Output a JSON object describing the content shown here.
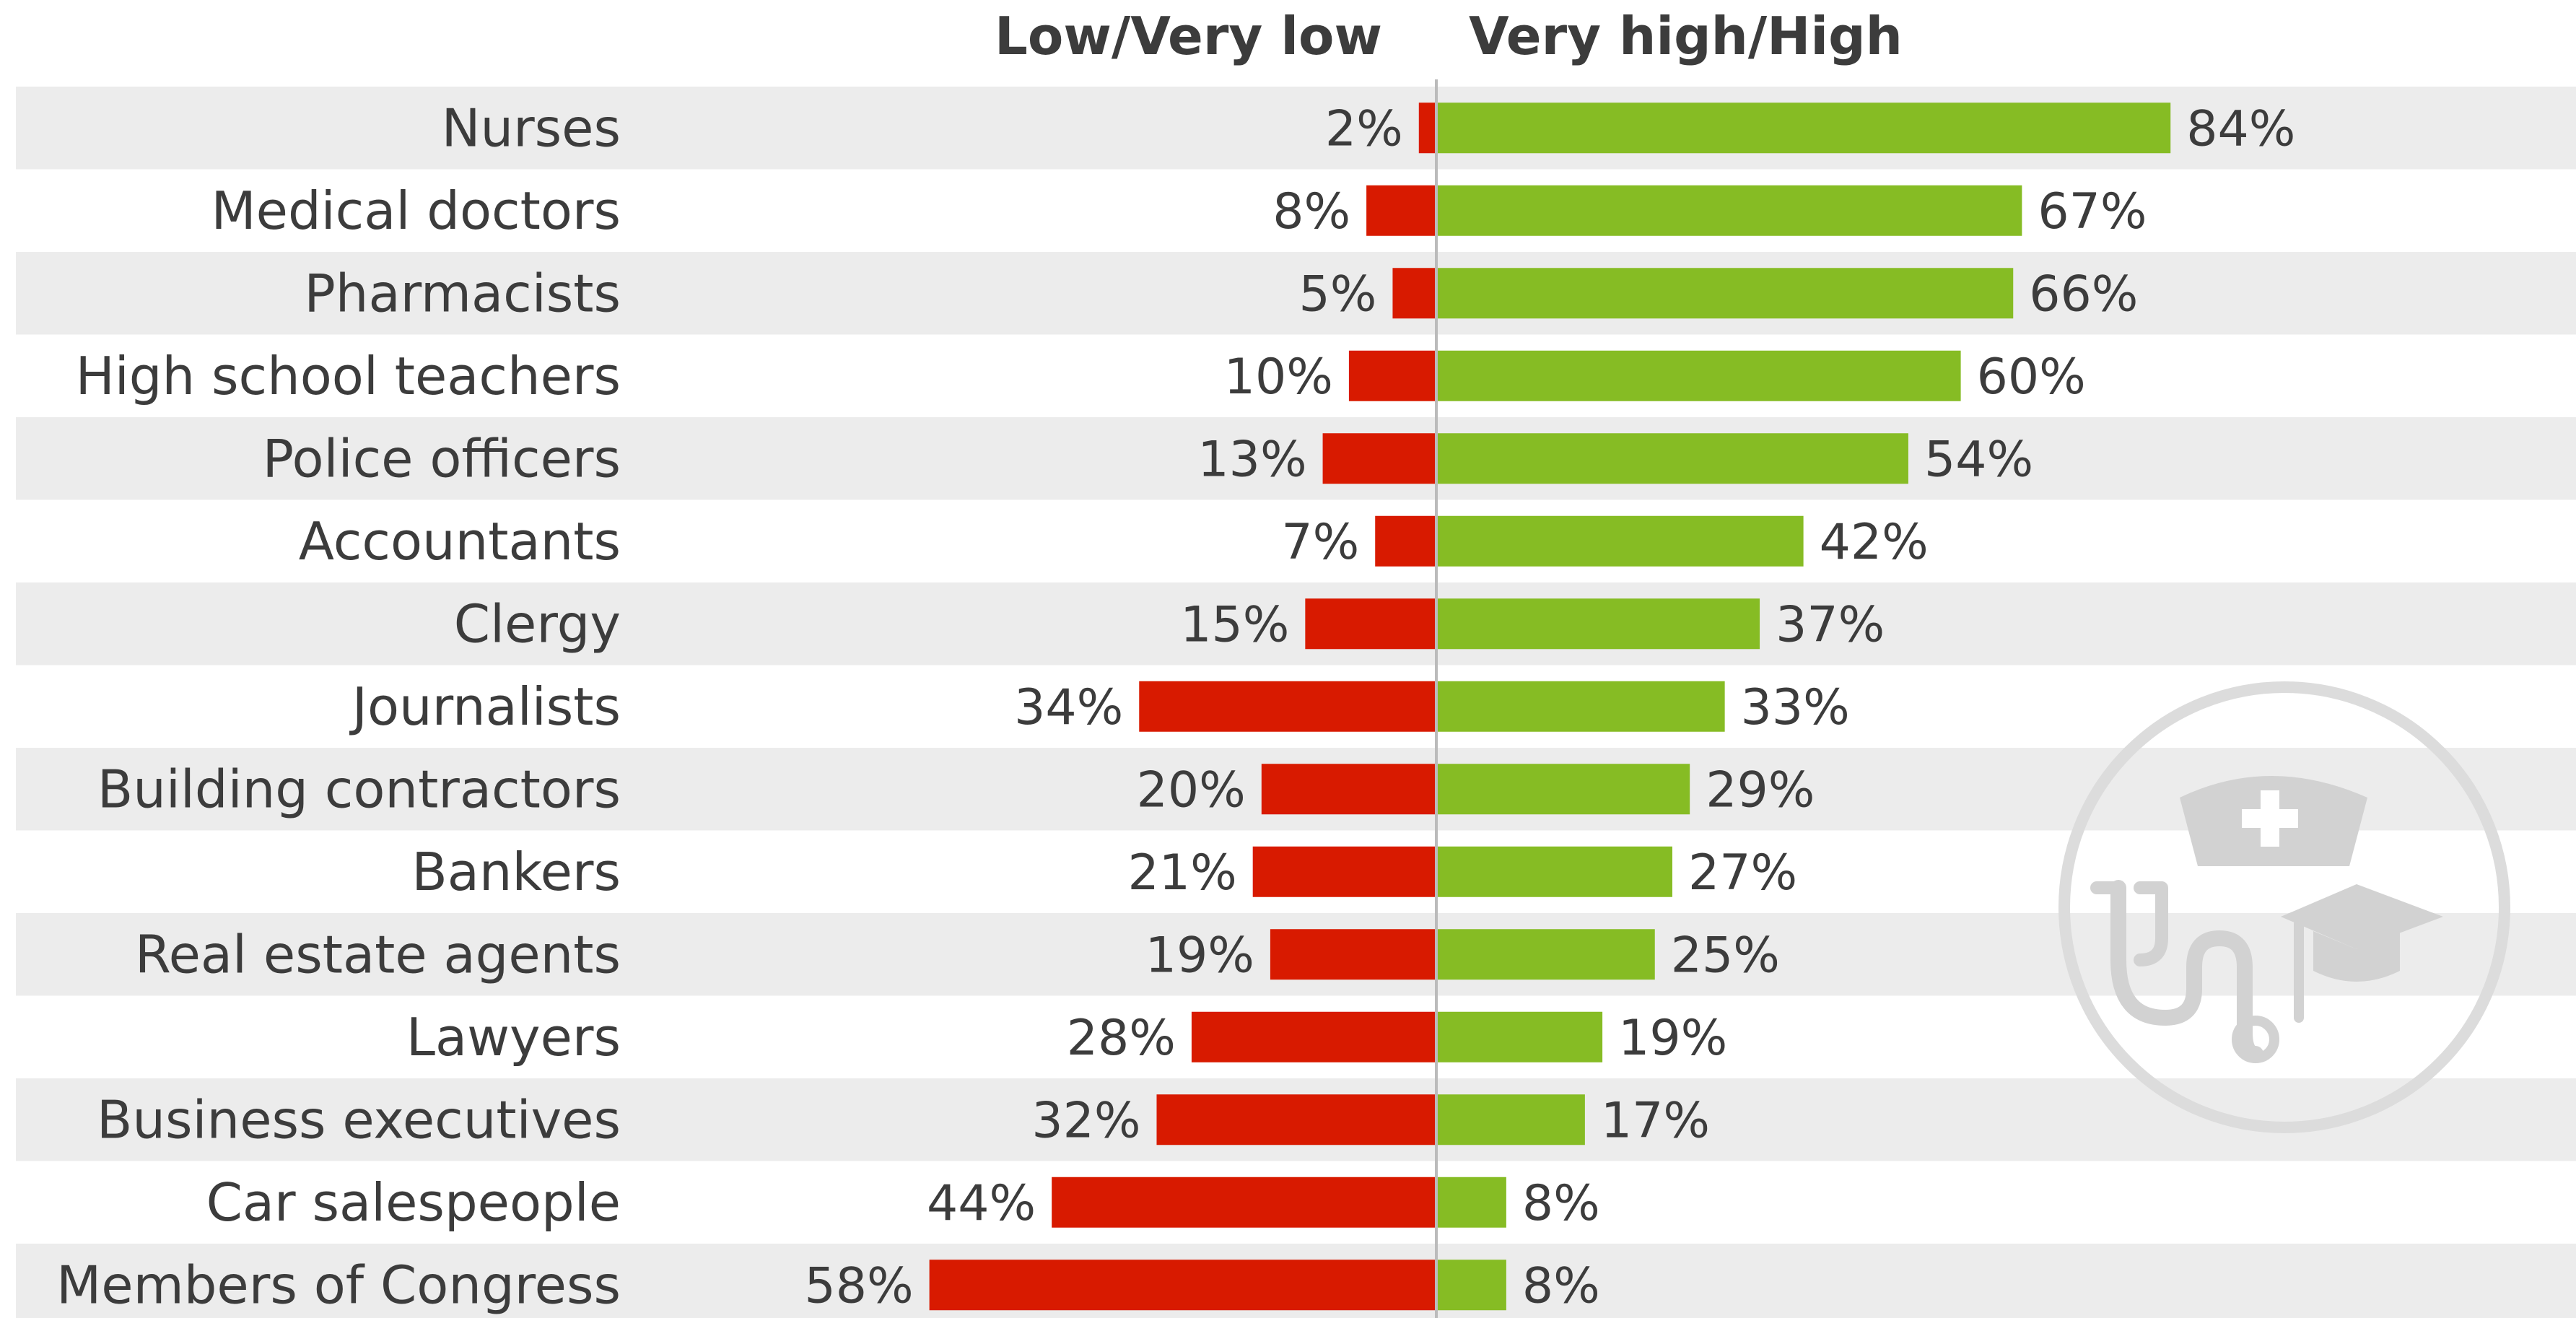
{
  "chart_data": {
    "type": "bar",
    "orientation": "horizontal-diverging",
    "headers": {
      "left": "Low/Very low",
      "right": "Very high/High"
    },
    "categories": [
      "Nurses",
      "Medical doctors",
      "Pharmacists",
      "High school teachers",
      "Police officers",
      "Accountants",
      "Clergy",
      "Journalists",
      "Building contractors",
      "Bankers",
      "Real estate agents",
      "Lawyers",
      "Business executives",
      "Car salespeople",
      "Members of Congress"
    ],
    "series": [
      {
        "name": "Low/Very low",
        "color": "#d81a00",
        "side": "left",
        "values": [
          2,
          8,
          5,
          10,
          13,
          7,
          15,
          34,
          20,
          21,
          19,
          28,
          32,
          44,
          58
        ],
        "labels": [
          "2%",
          "8%",
          "5%",
          "10%",
          "13%",
          "7%",
          "15%",
          "34%",
          "20%",
          "21%",
          "19%",
          "28%",
          "32%",
          "44%",
          "58%"
        ]
      },
      {
        "name": "Very high/High",
        "color": "#86bc24",
        "side": "right",
        "values": [
          84,
          67,
          66,
          60,
          54,
          42,
          37,
          33,
          29,
          27,
          25,
          19,
          17,
          8,
          8
        ],
        "labels": [
          "84%",
          "67%",
          "66%",
          "60%",
          "54%",
          "42%",
          "37%",
          "33%",
          "29%",
          "27%",
          "25%",
          "19%",
          "17%",
          "8%",
          "8%"
        ]
      }
    ],
    "xlim": [
      -58,
      84
    ],
    "row_banding": true,
    "stripe_color": "#ececec",
    "icon": "nurse-doctor-teacher-watermark-icon"
  }
}
